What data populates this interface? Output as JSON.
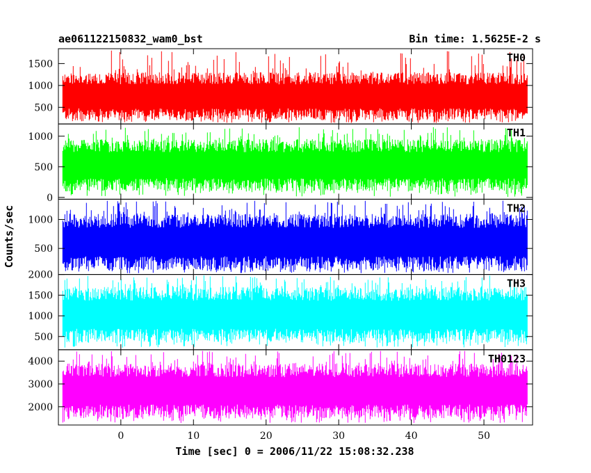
{
  "chart_data": {
    "type": "line",
    "title_left": "ae061122150832_wam0_bst",
    "title_right": "Bin time: 1.5625E-2 s",
    "xlabel": "Time [sec] 0 = 2006/11/22 15:08:32.238",
    "ylabel": "Counts/sec",
    "xlim": [
      -8.6,
      56.7
    ],
    "data_x_range": [
      -8,
      56
    ],
    "x_ticks": [
      0,
      10,
      20,
      30,
      40,
      50
    ],
    "colors": {
      "axes": "#000000"
    },
    "panels": [
      {
        "name": "TH0",
        "color": "#ff0000",
        "ylim": [
          120,
          1840
        ],
        "y_ticks": [
          500,
          1000,
          1500
        ],
        "typical_min": 200,
        "typical_max": 1300,
        "peak_max": 1800
      },
      {
        "name": "TH1",
        "color": "#00ff00",
        "ylim": [
          -30,
          1200
        ],
        "y_ticks": [
          0,
          500,
          1000
        ],
        "typical_min": 100,
        "typical_max": 950,
        "peak_max": 1150
      },
      {
        "name": "TH2",
        "color": "#0000ff",
        "ylim": [
          50,
          1350
        ],
        "y_ticks": [
          500,
          1000
        ],
        "typical_min": 120,
        "typical_max": 1100,
        "peak_max": 1330
      },
      {
        "name": "TH3",
        "color": "#00ffff",
        "ylim": [
          180,
          2000
        ],
        "y_ticks": [
          500,
          1000,
          1500,
          2000
        ],
        "typical_min": 350,
        "typical_max": 1700,
        "peak_max": 1980
      },
      {
        "name": "TH0123",
        "color": "#ff00ff",
        "ylim": [
          1200,
          4500
        ],
        "y_ticks": [
          2000,
          3000,
          4000
        ],
        "typical_min": 1500,
        "typical_max": 3900,
        "peak_max": 4450
      }
    ]
  }
}
